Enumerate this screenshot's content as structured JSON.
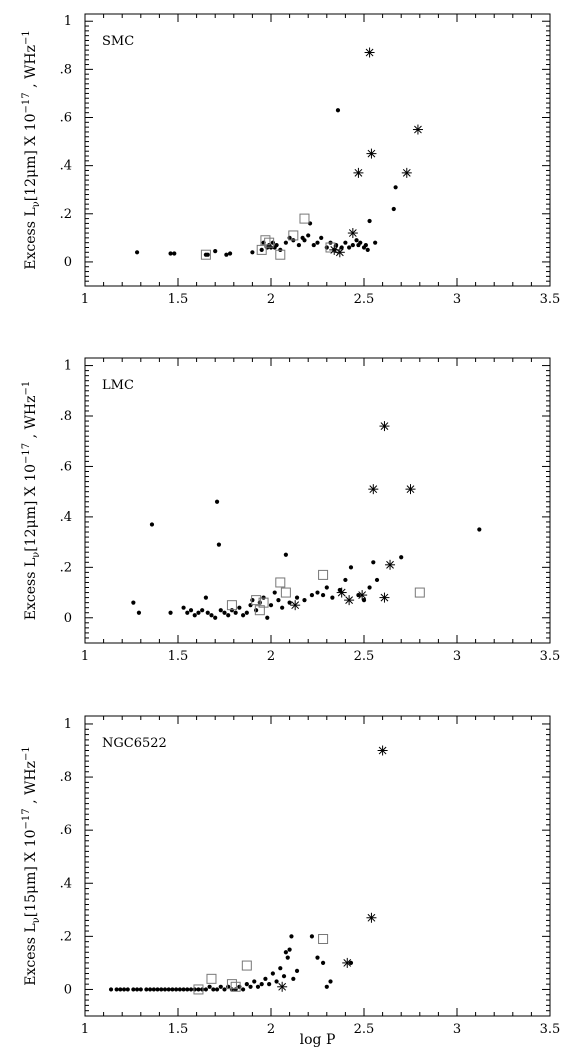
{
  "chart_data": [
    {
      "type": "scatter",
      "panel_label": "SMC",
      "ylabel": "Excess L_ν[12μm] X 10^-17 , WHz^-1",
      "ylabel_parts": {
        "pre": "Excess L",
        "sub": "ν",
        "mid": "[12μm] X 10",
        "exp": "−17",
        "post": ", WHz",
        "exp2": "−1"
      },
      "xlabel": "",
      "xlim": [
        1,
        3.5
      ],
      "ylim": [
        -0.1,
        1.03
      ],
      "xticks": [
        "1",
        "1.5",
        "2",
        "2.5",
        "3",
        "3.5"
      ],
      "yticks": [
        "0",
        ".2",
        ".4",
        ".6",
        ".8",
        "1"
      ],
      "series": [
        {
          "marker": "dot",
          "points": [
            [
              1.28,
              0.04
            ],
            [
              1.46,
              0.035
            ],
            [
              1.48,
              0.035
            ],
            [
              1.65,
              0.03
            ],
            [
              1.66,
              0.03
            ],
            [
              1.7,
              0.045
            ],
            [
              1.76,
              0.03
            ],
            [
              1.78,
              0.035
            ],
            [
              1.9,
              0.04
            ],
            [
              1.95,
              0.05
            ],
            [
              1.96,
              0.08
            ],
            [
              1.98,
              0.06
            ],
            [
              1.99,
              0.07
            ],
            [
              2.0,
              0.06
            ],
            [
              2.01,
              0.08
            ],
            [
              2.02,
              0.06
            ],
            [
              2.03,
              0.07
            ],
            [
              2.05,
              0.05
            ],
            [
              2.08,
              0.08
            ],
            [
              2.1,
              0.1
            ],
            [
              2.12,
              0.09
            ],
            [
              2.15,
              0.07
            ],
            [
              2.17,
              0.1
            ],
            [
              2.18,
              0.09
            ],
            [
              2.2,
              0.11
            ],
            [
              2.21,
              0.16
            ],
            [
              2.23,
              0.07
            ],
            [
              2.25,
              0.08
            ],
            [
              2.27,
              0.1
            ],
            [
              2.3,
              0.06
            ],
            [
              2.32,
              0.08
            ],
            [
              2.34,
              0.05
            ],
            [
              2.35,
              0.07
            ],
            [
              2.36,
              0.63
            ],
            [
              2.38,
              0.06
            ],
            [
              2.4,
              0.08
            ],
            [
              2.42,
              0.06
            ],
            [
              2.44,
              0.07
            ],
            [
              2.46,
              0.09
            ],
            [
              2.47,
              0.07
            ],
            [
              2.48,
              0.08
            ],
            [
              2.5,
              0.06
            ],
            [
              2.51,
              0.07
            ],
            [
              2.52,
              0.05
            ],
            [
              2.53,
              0.17
            ],
            [
              2.56,
              0.08
            ],
            [
              2.66,
              0.22
            ],
            [
              2.67,
              0.31
            ]
          ]
        },
        {
          "marker": "square",
          "points": [
            [
              1.65,
              0.03
            ],
            [
              1.95,
              0.05
            ],
            [
              1.97,
              0.09
            ],
            [
              1.99,
              0.08
            ],
            [
              2.05,
              0.03
            ],
            [
              2.12,
              0.11
            ],
            [
              2.18,
              0.18
            ],
            [
              2.32,
              0.06
            ]
          ]
        },
        {
          "marker": "star",
          "points": [
            [
              2.34,
              0.05
            ],
            [
              2.37,
              0.04
            ],
            [
              2.44,
              0.12
            ],
            [
              2.47,
              0.37
            ],
            [
              2.53,
              0.87
            ],
            [
              2.54,
              0.45
            ],
            [
              2.73,
              0.37
            ],
            [
              2.79,
              0.55
            ]
          ]
        }
      ]
    },
    {
      "type": "scatter",
      "panel_label": "LMC",
      "ylabel": "Excess L_ν[12μm] X 10^-17 , WHz^-1",
      "ylabel_parts": {
        "pre": "Excess L",
        "sub": "ν",
        "mid": "[12μm] X 10",
        "exp": "−17",
        "post": ", WHz",
        "exp2": "−1"
      },
      "xlabel": "",
      "xlim": [
        1,
        3.5
      ],
      "ylim": [
        -0.1,
        1.03
      ],
      "xticks": [
        "1",
        "1.5",
        "2",
        "2.5",
        "3",
        "3.5"
      ],
      "yticks": [
        "0",
        ".2",
        ".4",
        ".6",
        ".8",
        "1"
      ],
      "series": [
        {
          "marker": "dot",
          "points": [
            [
              1.26,
              0.06
            ],
            [
              1.29,
              0.02
            ],
            [
              1.36,
              0.37
            ],
            [
              1.46,
              0.02
            ],
            [
              1.53,
              0.04
            ],
            [
              1.55,
              0.02
            ],
            [
              1.57,
              0.03
            ],
            [
              1.59,
              0.01
            ],
            [
              1.61,
              0.02
            ],
            [
              1.63,
              0.03
            ],
            [
              1.65,
              0.08
            ],
            [
              1.66,
              0.02
            ],
            [
              1.68,
              0.01
            ],
            [
              1.7,
              0.0
            ],
            [
              1.71,
              0.46
            ],
            [
              1.72,
              0.29
            ],
            [
              1.73,
              0.03
            ],
            [
              1.75,
              0.02
            ],
            [
              1.77,
              0.01
            ],
            [
              1.79,
              0.03
            ],
            [
              1.81,
              0.02
            ],
            [
              1.83,
              0.04
            ],
            [
              1.85,
              0.01
            ],
            [
              1.87,
              0.02
            ],
            [
              1.89,
              0.05
            ],
            [
              1.9,
              0.07
            ],
            [
              1.92,
              0.03
            ],
            [
              1.94,
              0.06
            ],
            [
              1.96,
              0.08
            ],
            [
              1.98,
              0.0
            ],
            [
              2.0,
              0.05
            ],
            [
              2.02,
              0.1
            ],
            [
              2.04,
              0.07
            ],
            [
              2.06,
              0.04
            ],
            [
              2.08,
              0.25
            ],
            [
              2.1,
              0.06
            ],
            [
              2.14,
              0.08
            ],
            [
              2.18,
              0.07
            ],
            [
              2.22,
              0.09
            ],
            [
              2.25,
              0.1
            ],
            [
              2.28,
              0.09
            ],
            [
              2.3,
              0.12
            ],
            [
              2.33,
              0.08
            ],
            [
              2.37,
              0.11
            ],
            [
              2.4,
              0.15
            ],
            [
              2.43,
              0.2
            ],
            [
              2.47,
              0.09
            ],
            [
              2.5,
              0.07
            ],
            [
              2.53,
              0.12
            ],
            [
              2.55,
              0.22
            ],
            [
              2.57,
              0.15
            ],
            [
              2.7,
              0.24
            ],
            [
              3.12,
              0.35
            ]
          ]
        },
        {
          "marker": "square",
          "points": [
            [
              1.79,
              0.05
            ],
            [
              1.92,
              0.07
            ],
            [
              1.94,
              0.03
            ],
            [
              1.96,
              0.06
            ],
            [
              2.05,
              0.14
            ],
            [
              2.08,
              0.1
            ],
            [
              2.28,
              0.17
            ],
            [
              2.8,
              0.1
            ]
          ]
        },
        {
          "marker": "star",
          "points": [
            [
              2.13,
              0.05
            ],
            [
              2.38,
              0.1
            ],
            [
              2.42,
              0.07
            ],
            [
              2.49,
              0.09
            ],
            [
              2.55,
              0.51
            ],
            [
              2.61,
              0.76
            ],
            [
              2.61,
              0.08
            ],
            [
              2.64,
              0.21
            ],
            [
              2.75,
              0.51
            ]
          ]
        }
      ]
    },
    {
      "type": "scatter",
      "panel_label": "NGC6522",
      "ylabel": "Excess L_ν[15μm] X 10^-17 , WHz^-1",
      "ylabel_parts": {
        "pre": "Excess L",
        "sub": "ν",
        "mid": "[15μm] X 10",
        "exp": "−17",
        "post": ", WHz",
        "exp2": "−1"
      },
      "xlabel": "log P",
      "xlim": [
        1,
        3.5
      ],
      "ylim": [
        -0.1,
        1.03
      ],
      "xticks": [
        "1",
        "1.5",
        "2",
        "2.5",
        "3",
        "3.5"
      ],
      "yticks": [
        "0",
        ".2",
        ".4",
        ".6",
        ".8",
        "1"
      ],
      "series": [
        {
          "marker": "dot",
          "points": [
            [
              1.14,
              0.0
            ],
            [
              1.17,
              0.0
            ],
            [
              1.19,
              0.0
            ],
            [
              1.21,
              0.0
            ],
            [
              1.23,
              0.0
            ],
            [
              1.26,
              0.0
            ],
            [
              1.28,
              0.0
            ],
            [
              1.3,
              0.0
            ],
            [
              1.33,
              0.0
            ],
            [
              1.35,
              0.0
            ],
            [
              1.37,
              0.0
            ],
            [
              1.39,
              0.0
            ],
            [
              1.41,
              0.0
            ],
            [
              1.43,
              0.0
            ],
            [
              1.45,
              0.0
            ],
            [
              1.47,
              0.0
            ],
            [
              1.49,
              0.0
            ],
            [
              1.51,
              0.0
            ],
            [
              1.53,
              0.0
            ],
            [
              1.55,
              0.0
            ],
            [
              1.57,
              0.0
            ],
            [
              1.59,
              0.0
            ],
            [
              1.61,
              0.0
            ],
            [
              1.63,
              0.0
            ],
            [
              1.65,
              0.0
            ],
            [
              1.67,
              0.01
            ],
            [
              1.69,
              0.0
            ],
            [
              1.71,
              0.0
            ],
            [
              1.73,
              0.01
            ],
            [
              1.75,
              0.0
            ],
            [
              1.77,
              0.01
            ],
            [
              1.79,
              0.0
            ],
            [
              1.81,
              0.0
            ],
            [
              1.83,
              0.01
            ],
            [
              1.85,
              0.0
            ],
            [
              1.87,
              0.02
            ],
            [
              1.89,
              0.01
            ],
            [
              1.91,
              0.03
            ],
            [
              1.93,
              0.01
            ],
            [
              1.95,
              0.02
            ],
            [
              1.97,
              0.04
            ],
            [
              1.99,
              0.02
            ],
            [
              2.01,
              0.06
            ],
            [
              2.03,
              0.03
            ],
            [
              2.05,
              0.08
            ],
            [
              2.07,
              0.05
            ],
            [
              2.08,
              0.14
            ],
            [
              2.09,
              0.12
            ],
            [
              2.1,
              0.15
            ],
            [
              2.11,
              0.2
            ],
            [
              2.12,
              0.04
            ],
            [
              2.14,
              0.07
            ],
            [
              2.22,
              0.2
            ],
            [
              2.25,
              0.12
            ],
            [
              2.28,
              0.1
            ],
            [
              2.3,
              0.01
            ],
            [
              2.32,
              0.03
            ],
            [
              2.43,
              0.1
            ]
          ]
        },
        {
          "marker": "square",
          "points": [
            [
              1.61,
              0.0
            ],
            [
              1.68,
              0.04
            ],
            [
              1.79,
              0.02
            ],
            [
              1.81,
              0.01
            ],
            [
              1.87,
              0.09
            ],
            [
              2.28,
              0.19
            ]
          ]
        },
        {
          "marker": "star",
          "points": [
            [
              2.06,
              0.01
            ],
            [
              2.41,
              0.1
            ],
            [
              2.54,
              0.27
            ],
            [
              2.6,
              0.9
            ]
          ]
        }
      ]
    }
  ]
}
